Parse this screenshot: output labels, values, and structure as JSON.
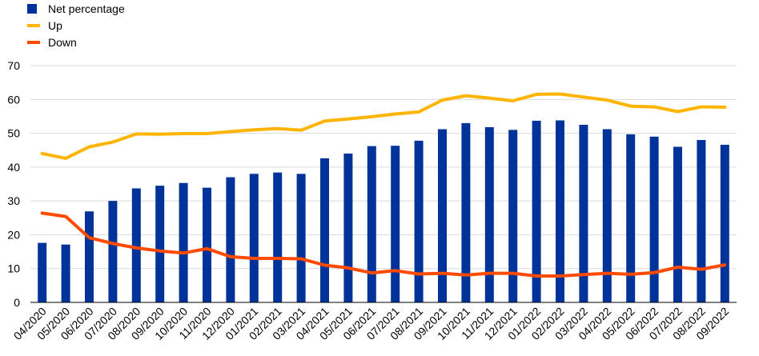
{
  "chart_data": {
    "type": "bar",
    "categories": [
      "04/2020",
      "05/2020",
      "06/2020",
      "07/2020",
      "08/2020",
      "09/2020",
      "10/2020",
      "11/2020",
      "12/2020",
      "01/2021",
      "02/2021",
      "03/2021",
      "04/2021",
      "05/2021",
      "06/2021",
      "07/2021",
      "08/2021",
      "09/2021",
      "10/2021",
      "11/2021",
      "12/2021",
      "01/2022",
      "02/2022",
      "03/2022",
      "04/2022",
      "05/2022",
      "06/2022",
      "07/2022",
      "08/2022",
      "09/2022"
    ],
    "series": [
      {
        "name": "Net percentage",
        "type": "bar",
        "color": "#003399",
        "values": [
          17.6,
          17.1,
          26.9,
          30.0,
          33.7,
          34.5,
          35.3,
          33.9,
          37.0,
          38.0,
          38.4,
          38.0,
          42.6,
          44.0,
          46.2,
          46.3,
          47.8,
          51.2,
          53.0,
          51.8,
          51.0,
          53.7,
          53.8,
          52.5,
          51.2,
          49.7,
          49.0,
          46.0,
          48.0,
          46.6
        ]
      },
      {
        "name": "Up",
        "type": "line",
        "color": "#FFB400",
        "values": [
          44.0,
          42.6,
          46.0,
          47.4,
          49.8,
          49.7,
          49.9,
          49.9,
          50.5,
          51.0,
          51.4,
          50.9,
          53.6,
          54.2,
          54.9,
          55.7,
          56.3,
          59.8,
          61.1,
          60.4,
          59.6,
          61.5,
          61.6,
          60.7,
          59.8,
          58.0,
          57.8,
          56.4,
          57.8,
          57.7
        ]
      },
      {
        "name": "Down",
        "type": "line",
        "color": "#FF4B00",
        "values": [
          26.4,
          25.4,
          19.1,
          17.4,
          16.1,
          15.2,
          14.6,
          15.9,
          13.5,
          13.0,
          13.0,
          12.9,
          11.0,
          10.2,
          8.7,
          9.4,
          8.4,
          8.6,
          8.1,
          8.6,
          8.6,
          7.8,
          7.8,
          8.2,
          8.6,
          8.3,
          8.8,
          10.4,
          9.8,
          11.1
        ]
      }
    ],
    "ylim": [
      0,
      70
    ],
    "yticks": [
      0,
      10,
      20,
      30,
      40,
      50,
      60,
      70
    ],
    "grid": true,
    "legend_position": "top-left"
  }
}
